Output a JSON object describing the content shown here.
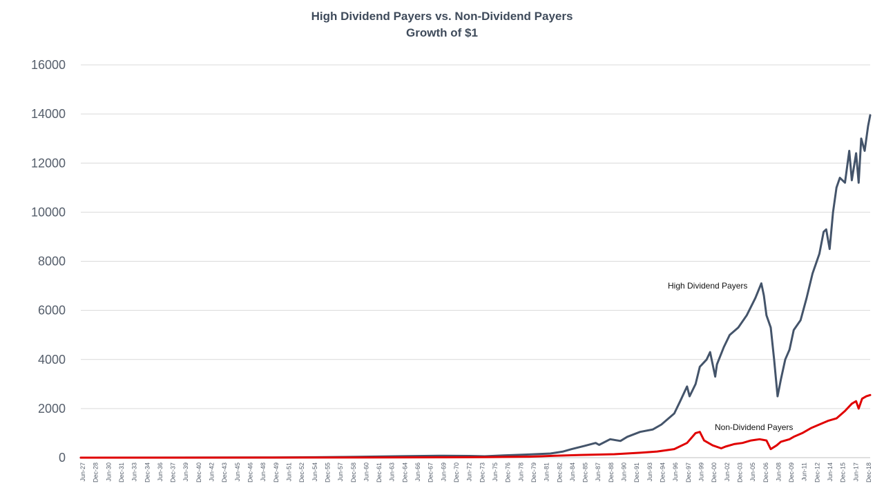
{
  "chart_data": {
    "type": "line",
    "title_line1": "High Dividend Payers vs. Non-Dividend  Payers",
    "title_line2": "Growth  of $1",
    "xlabel": "",
    "ylabel": "",
    "ylim": [
      0,
      16000
    ],
    "yticks": [
      0,
      2000,
      4000,
      6000,
      8000,
      10000,
      12000,
      14000,
      16000
    ],
    "grid": true,
    "x_range": [
      "Jun-27",
      "Dec-19"
    ],
    "xtick_labels": [
      "Jun-27",
      "Dec-28",
      "Jun-30",
      "Dec-31",
      "Jun-33",
      "Dec-34",
      "Jun-36",
      "Dec-37",
      "Jun-39",
      "Dec-40",
      "Jun-42",
      "Dec-43",
      "Jun-45",
      "Dec-46",
      "Jun-48",
      "Dec-49",
      "Jun-51",
      "Dec-52",
      "Jun-54",
      "Dec-55",
      "Jun-57",
      "Dec-58",
      "Jun-60",
      "Dec-61",
      "Jun-63",
      "Dec-64",
      "Jun-66",
      "Dec-67",
      "Jun-69",
      "Dec-70",
      "Jun-72",
      "Dec-73",
      "Jun-75",
      "Dec-76",
      "Jun-78",
      "Dec-79",
      "Jun-81",
      "Dec-82",
      "Jun-84",
      "Dec-85",
      "Jun-87",
      "Dec-88",
      "Jun-90",
      "Dec-91",
      "Jun-93",
      "Dec-94",
      "Jun-96",
      "Dec-97",
      "Jun-99",
      "Dec-00",
      "Jun-02",
      "Dec-03",
      "Jun-05",
      "Dec-06",
      "Jun-08",
      "Dec-09",
      "Jun-11",
      "Dec-12",
      "Jun-14",
      "Dec-15",
      "Jun-17",
      "Dec-18"
    ],
    "series": [
      {
        "name": "High Dividend Payers",
        "color": "#44546a",
        "x": [
          1927.5,
          1950,
          1955,
          1960,
          1965,
          1970,
          1973,
          1974.8,
          1977,
          1980,
          1982.5,
          1984,
          1985,
          1986.5,
          1987.8,
          1988.2,
          1989.5,
          1990.7,
          1991.5,
          1993,
          1994.5,
          1995.5,
          1997,
          1997.7,
          1998.5,
          1998.8,
          1999.5,
          2000,
          2000.8,
          2001.2,
          2001.8,
          2002,
          2002.8,
          2003.5,
          2004.5,
          2005.5,
          2006.5,
          2007.2,
          2007.5,
          2007.8,
          2008.3,
          2008.7,
          2009.1,
          2009.5,
          2010,
          2010.5,
          2011,
          2011.8,
          2012.5,
          2013.2,
          2014,
          2014.5,
          2014.8,
          2015.2,
          2015.6,
          2016,
          2016.4,
          2017,
          2017.5,
          2017.8,
          2018.3,
          2018.6,
          2018.9,
          2019.3,
          2019.7,
          2019.95
        ],
        "y": [
          1,
          5,
          18,
          35,
          60,
          80,
          70,
          55,
          90,
          130,
          170,
          250,
          350,
          480,
          600,
          520,
          750,
          680,
          850,
          1050,
          1150,
          1350,
          1800,
          2300,
          2900,
          2500,
          3000,
          3700,
          4000,
          4300,
          3300,
          3800,
          4500,
          5000,
          5300,
          5800,
          6500,
          7100,
          6600,
          5800,
          5300,
          4000,
          2500,
          3200,
          4000,
          4400,
          5200,
          5600,
          6500,
          7500,
          8300,
          9200,
          9300,
          8500,
          10000,
          11000,
          11400,
          11200,
          12500,
          11300,
          12400,
          11200,
          13000,
          12500,
          13500,
          13950
        ]
      },
      {
        "name": "Non-Dividend Payers",
        "color": "#e00000",
        "x": [
          1927.5,
          1950,
          1960,
          1970,
          1975,
          1980,
          1983,
          1986,
          1990,
          1993,
          1995,
          1997,
          1998.5,
          1999.5,
          2000,
          2000.5,
          2001.5,
          2002.5,
          2003,
          2004,
          2005,
          2006,
          2007,
          2007.8,
          2008.3,
          2009,
          2009.5,
          2010.5,
          2011,
          2012,
          2013,
          2014,
          2015,
          2016,
          2017,
          2017.8,
          2018.3,
          2018.6,
          2019,
          2019.5,
          2019.95
        ],
        "y": [
          1,
          3,
          8,
          15,
          20,
          40,
          80,
          110,
          140,
          200,
          250,
          350,
          600,
          1000,
          1050,
          700,
          500,
          380,
          450,
          550,
          600,
          700,
          750,
          700,
          350,
          500,
          650,
          750,
          850,
          1000,
          1200,
          1350,
          1500,
          1600,
          1900,
          2200,
          2300,
          2000,
          2400,
          2500,
          2550
        ]
      }
    ],
    "annotations": [
      {
        "text": "High Dividend Payers",
        "series": "High Dividend Payers"
      },
      {
        "text": "Non-Dividend Payers",
        "series": "Non-Dividend Payers"
      }
    ]
  }
}
